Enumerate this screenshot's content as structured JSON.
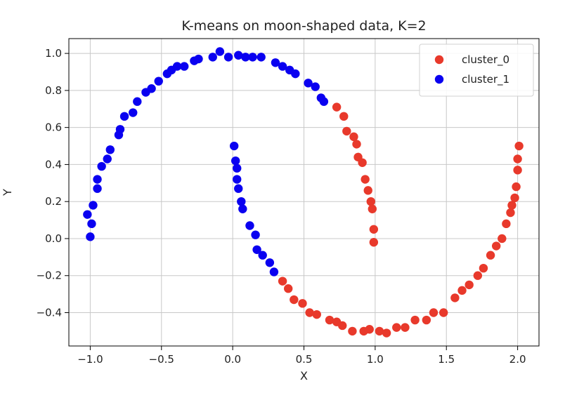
{
  "chart_data": {
    "type": "scatter",
    "title": "K-means on moon-shaped data, K=2",
    "xlabel": "X",
    "ylabel": "Y",
    "xlim": [
      -1.15,
      2.15
    ],
    "ylim": [
      -0.58,
      1.08
    ],
    "xticks": [
      -1.0,
      -0.5,
      0.0,
      0.5,
      1.0,
      1.5,
      2.0
    ],
    "xtick_labels": [
      "−1.0",
      "−0.5",
      "0.0",
      "0.5",
      "1.0",
      "1.5",
      "2.0"
    ],
    "yticks": [
      -0.4,
      -0.2,
      0.0,
      0.2,
      0.4,
      0.6,
      0.8,
      1.0
    ],
    "ytick_labels": [
      "−0.4",
      "−0.2",
      "0.0",
      "0.2",
      "0.4",
      "0.6",
      "0.8",
      "1.0"
    ],
    "grid": true,
    "legend_position": "top-right",
    "series": [
      {
        "name": "cluster_0",
        "color": "#e8392b",
        "points": [
          [
            0.73,
            0.71
          ],
          [
            0.78,
            0.66
          ],
          [
            0.8,
            0.58
          ],
          [
            0.85,
            0.55
          ],
          [
            0.87,
            0.51
          ],
          [
            0.88,
            0.44
          ],
          [
            0.91,
            0.41
          ],
          [
            0.93,
            0.32
          ],
          [
            0.95,
            0.26
          ],
          [
            0.97,
            0.2
          ],
          [
            0.98,
            0.16
          ],
          [
            0.99,
            0.05
          ],
          [
            0.99,
            -0.02
          ],
          [
            0.35,
            -0.23
          ],
          [
            0.39,
            -0.27
          ],
          [
            0.43,
            -0.33
          ],
          [
            0.49,
            -0.35
          ],
          [
            0.54,
            -0.4
          ],
          [
            0.59,
            -0.41
          ],
          [
            0.68,
            -0.44
          ],
          [
            0.73,
            -0.45
          ],
          [
            0.77,
            -0.47
          ],
          [
            0.84,
            -0.5
          ],
          [
            0.92,
            -0.5
          ],
          [
            0.96,
            -0.49
          ],
          [
            1.03,
            -0.5
          ],
          [
            1.08,
            -0.51
          ],
          [
            1.15,
            -0.48
          ],
          [
            1.21,
            -0.48
          ],
          [
            1.28,
            -0.44
          ],
          [
            1.36,
            -0.44
          ],
          [
            1.41,
            -0.4
          ],
          [
            1.48,
            -0.4
          ],
          [
            1.56,
            -0.32
          ],
          [
            1.61,
            -0.28
          ],
          [
            1.66,
            -0.25
          ],
          [
            1.72,
            -0.2
          ],
          [
            1.76,
            -0.16
          ],
          [
            1.81,
            -0.09
          ],
          [
            1.85,
            -0.04
          ],
          [
            1.89,
            0.0
          ],
          [
            1.92,
            0.08
          ],
          [
            1.95,
            0.14
          ],
          [
            1.96,
            0.18
          ],
          [
            1.98,
            0.22
          ],
          [
            1.99,
            0.28
          ],
          [
            2.0,
            0.37
          ],
          [
            2.0,
            0.43
          ],
          [
            2.01,
            0.5
          ]
        ]
      },
      {
        "name": "cluster_1",
        "color": "#0a00f0",
        "points": [
          [
            -1.02,
            0.13
          ],
          [
            -1.0,
            0.01
          ],
          [
            -0.99,
            0.08
          ],
          [
            -0.98,
            0.18
          ],
          [
            -0.95,
            0.27
          ],
          [
            -0.95,
            0.32
          ],
          [
            -0.92,
            0.39
          ],
          [
            -0.88,
            0.43
          ],
          [
            -0.86,
            0.48
          ],
          [
            -0.8,
            0.56
          ],
          [
            -0.79,
            0.59
          ],
          [
            -0.76,
            0.66
          ],
          [
            -0.7,
            0.68
          ],
          [
            -0.67,
            0.74
          ],
          [
            -0.61,
            0.79
          ],
          [
            -0.57,
            0.81
          ],
          [
            -0.52,
            0.85
          ],
          [
            -0.46,
            0.89
          ],
          [
            -0.43,
            0.91
          ],
          [
            -0.39,
            0.93
          ],
          [
            -0.34,
            0.93
          ],
          [
            -0.27,
            0.96
          ],
          [
            -0.24,
            0.97
          ],
          [
            -0.14,
            0.98
          ],
          [
            -0.09,
            1.01
          ],
          [
            -0.03,
            0.98
          ],
          [
            0.04,
            0.99
          ],
          [
            0.09,
            0.98
          ],
          [
            0.14,
            0.98
          ],
          [
            0.2,
            0.98
          ],
          [
            0.3,
            0.95
          ],
          [
            0.35,
            0.93
          ],
          [
            0.4,
            0.91
          ],
          [
            0.44,
            0.89
          ],
          [
            0.53,
            0.84
          ],
          [
            0.58,
            0.82
          ],
          [
            0.62,
            0.76
          ],
          [
            0.64,
            0.74
          ],
          [
            0.01,
            0.5
          ],
          [
            0.02,
            0.42
          ],
          [
            0.03,
            0.38
          ],
          [
            0.03,
            0.32
          ],
          [
            0.04,
            0.27
          ],
          [
            0.06,
            0.2
          ],
          [
            0.07,
            0.16
          ],
          [
            0.12,
            0.07
          ],
          [
            0.16,
            0.02
          ],
          [
            0.17,
            -0.06
          ],
          [
            0.21,
            -0.09
          ],
          [
            0.26,
            -0.13
          ],
          [
            0.29,
            -0.18
          ]
        ]
      }
    ]
  }
}
